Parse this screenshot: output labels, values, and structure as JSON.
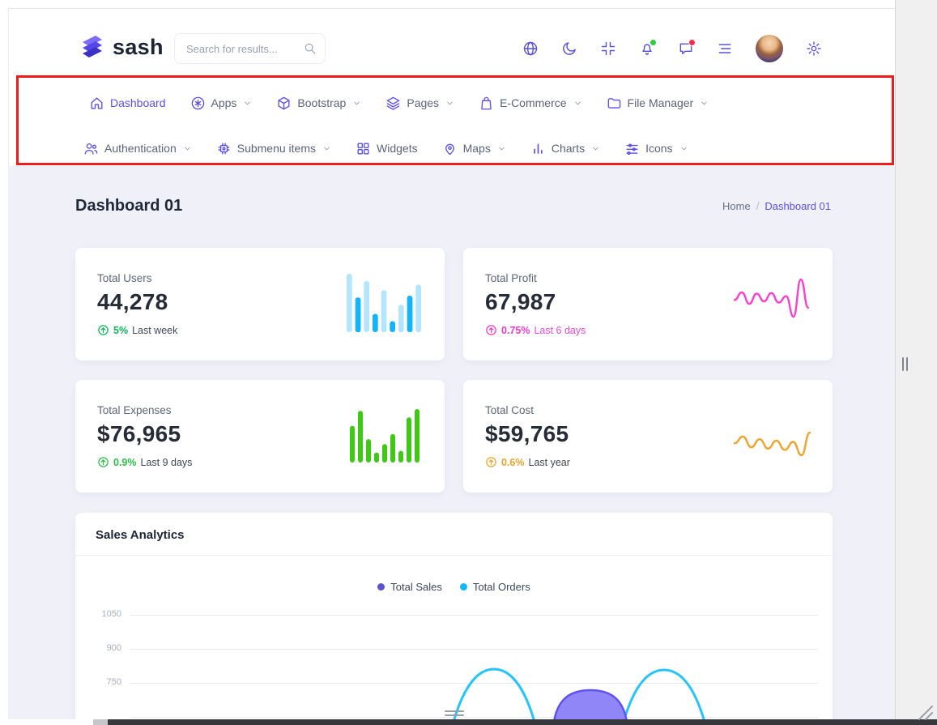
{
  "header": {
    "logo": {
      "text": "sash"
    },
    "search": {
      "placeholder": "Search for results..."
    },
    "action_icons": [
      "globe",
      "moon",
      "compress",
      "bell",
      "chat",
      "menu-lines",
      "avatar",
      "settings"
    ],
    "actions": {
      "notification_dot_color": "#2ecc40",
      "message_dot_color": "#fb2b50"
    }
  },
  "nav": {
    "row1": [
      {
        "label": "Dashboard",
        "icon": "home-icon",
        "active": true,
        "chevron": false
      },
      {
        "label": "Apps",
        "icon": "asterisk-circle-icon",
        "chevron": true
      },
      {
        "label": "Bootstrap",
        "icon": "cube-icon",
        "chevron": true
      },
      {
        "label": "Pages",
        "icon": "layers-icon",
        "chevron": true
      },
      {
        "label": "E-Commerce",
        "icon": "shopping-bag-icon",
        "chevron": true
      },
      {
        "label": "File Manager",
        "icon": "folder-icon",
        "chevron": true
      }
    ],
    "row2": [
      {
        "label": "Authentication",
        "icon": "users-icon",
        "chevron": true
      },
      {
        "label": "Submenu items",
        "icon": "cpu-icon",
        "chevron": true
      },
      {
        "label": "Widgets",
        "icon": "grid-icon",
        "chevron": false
      },
      {
        "label": "Maps",
        "icon": "map-pin-icon",
        "chevron": true
      },
      {
        "label": "Charts",
        "icon": "bar-chart-icon",
        "chevron": true
      },
      {
        "label": "Icons",
        "icon": "sliders-icon",
        "chevron": true
      }
    ]
  },
  "page": {
    "title": "Dashboard 01",
    "breadcrumb_home": "Home",
    "breadcrumb_sep": "/",
    "breadcrumb_current": "Dashboard 01"
  },
  "stats": [
    {
      "label": "Total Users",
      "value": "44,278",
      "delta": "5%",
      "note": "Last week",
      "accent": "#0eb559",
      "note_color": "#3f4754"
    },
    {
      "label": "Total Profit",
      "value": "67,987",
      "delta": "0.75%",
      "note": "Last 6 days",
      "accent": "#f23acc",
      "note_color": "#ee49d3"
    },
    {
      "label": "Total Expenses",
      "value": "$76,965",
      "delta": "0.9%",
      "note": "Last 9 days",
      "accent": "#2cc146",
      "note_color": "#3f4754"
    },
    {
      "label": "Total Cost",
      "value": "$59,765",
      "delta": "0.6%",
      "note": "Last year",
      "accent": "#efa32b",
      "note_color": "#3f4754"
    }
  ],
  "sales_card": {
    "title": "Sales Analytics",
    "legend": [
      {
        "label": "Total Sales",
        "color": "#5a52cf"
      },
      {
        "label": "Total Orders",
        "color": "#12b7f8"
      }
    ],
    "y_ticks": [
      "1050",
      "900",
      "750"
    ]
  },
  "chart_data": [
    {
      "name": "total-users-spark",
      "type": "bar",
      "values": [
        64,
        38,
        56,
        20,
        46,
        12,
        30,
        40,
        52
      ],
      "bar_colors": [
        "#b3e6fe",
        "#13b4fa"
      ]
    },
    {
      "name": "total-profit-spark",
      "type": "line",
      "color": "#fb3fd0",
      "values": [
        52,
        64,
        46,
        62,
        50,
        63,
        48,
        58,
        26,
        84,
        40
      ]
    },
    {
      "name": "total-expenses-spark",
      "type": "bar",
      "color": "#3fc815",
      "values": [
        44,
        62,
        28,
        12,
        22,
        34,
        14,
        54,
        64
      ]
    },
    {
      "name": "total-cost-spark",
      "type": "line",
      "color": "#f0a42d",
      "values": [
        46,
        56,
        40,
        52,
        38,
        50,
        36,
        48,
        28,
        62
      ]
    },
    {
      "name": "sales-analytics",
      "type": "area",
      "title": "Sales Analytics",
      "ylim": [
        600,
        1100
      ],
      "y_ticks": [
        750,
        900,
        1050
      ],
      "series": [
        {
          "name": "Total Sales",
          "color": "#5f53ef",
          "fill": "#8a80f8",
          "values": [
            620,
            640,
            690,
            720,
            700,
            650
          ]
        },
        {
          "name": "Total Orders",
          "color": "#25c4fd",
          "values": [
            600,
            630,
            810,
            650,
            620,
            812,
            640,
            615
          ]
        }
      ]
    }
  ]
}
